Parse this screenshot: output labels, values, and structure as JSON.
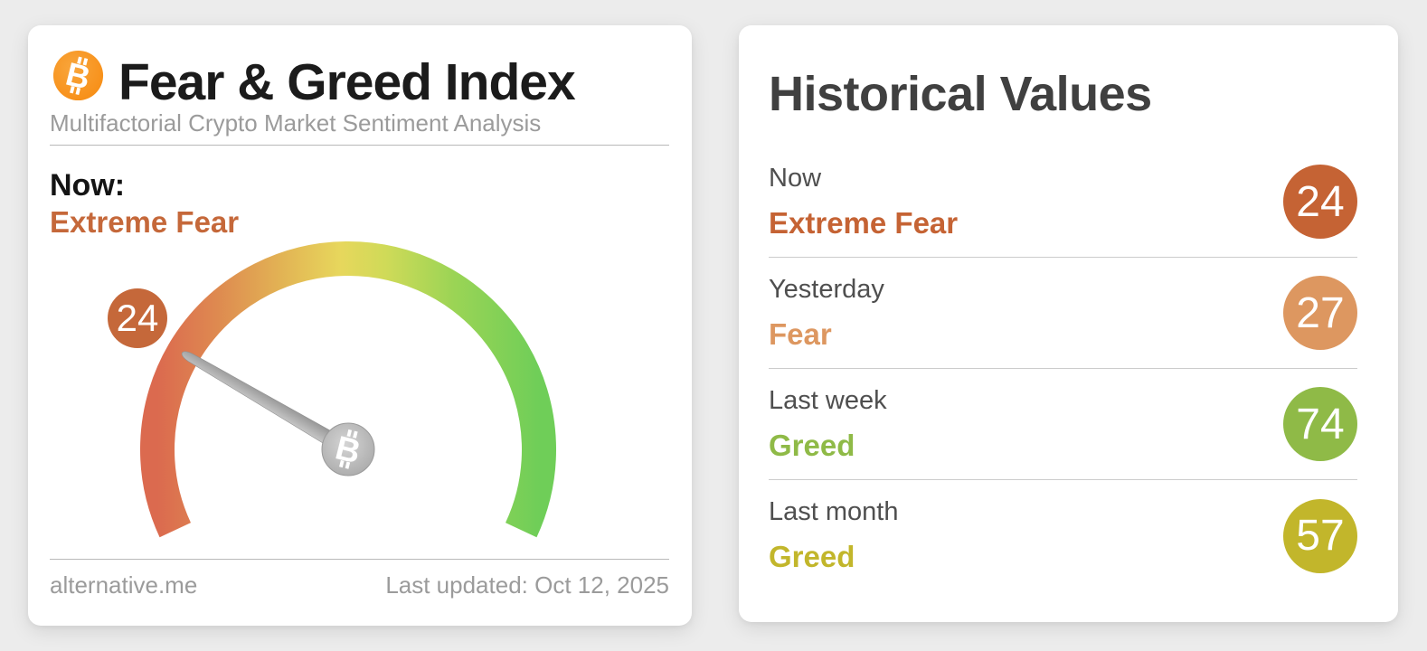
{
  "gauge_card": {
    "title": "Fear & Greed Index",
    "subtitle": "Multifactorial Crypto Market Sentiment Analysis",
    "now_label": "Now:",
    "now_classification": "Extreme Fear",
    "value": 24,
    "classification_color": "#c5683a",
    "footer_source": "alternative.me",
    "footer_updated": "Last updated: Oct 12, 2025"
  },
  "historical_card": {
    "title": "Historical Values",
    "rows": [
      {
        "label": "Now",
        "classification": "Extreme Fear",
        "value": 24,
        "color": "#c56334"
      },
      {
        "label": "Yesterday",
        "classification": "Fear",
        "value": 27,
        "color": "#dd9760"
      },
      {
        "label": "Last week",
        "classification": "Greed",
        "value": 74,
        "color": "#8fba47"
      },
      {
        "label": "Last month",
        "classification": "Greed",
        "value": 57,
        "color": "#c2b62b"
      }
    ]
  },
  "chart_data": {
    "type": "gauge",
    "title": "Fear & Greed Index",
    "value": 24,
    "min": 0,
    "max": 100,
    "classification": "Extreme Fear",
    "scale_colors": [
      "#db6a4f",
      "#de8850",
      "#e7d75c",
      "#9ad455",
      "#6fce58"
    ],
    "needle_start_deg": 205,
    "needle_sweep_deg": 230,
    "historical": [
      {
        "label": "Now",
        "value": 24,
        "classification": "Extreme Fear"
      },
      {
        "label": "Yesterday",
        "value": 27,
        "classification": "Fear"
      },
      {
        "label": "Last week",
        "value": 74,
        "classification": "Greed"
      },
      {
        "label": "Last month",
        "value": 57,
        "classification": "Greed"
      }
    ],
    "colors": {
      "accent_orange": "#f7931a",
      "needle_gray": "#a8a8a8"
    }
  }
}
